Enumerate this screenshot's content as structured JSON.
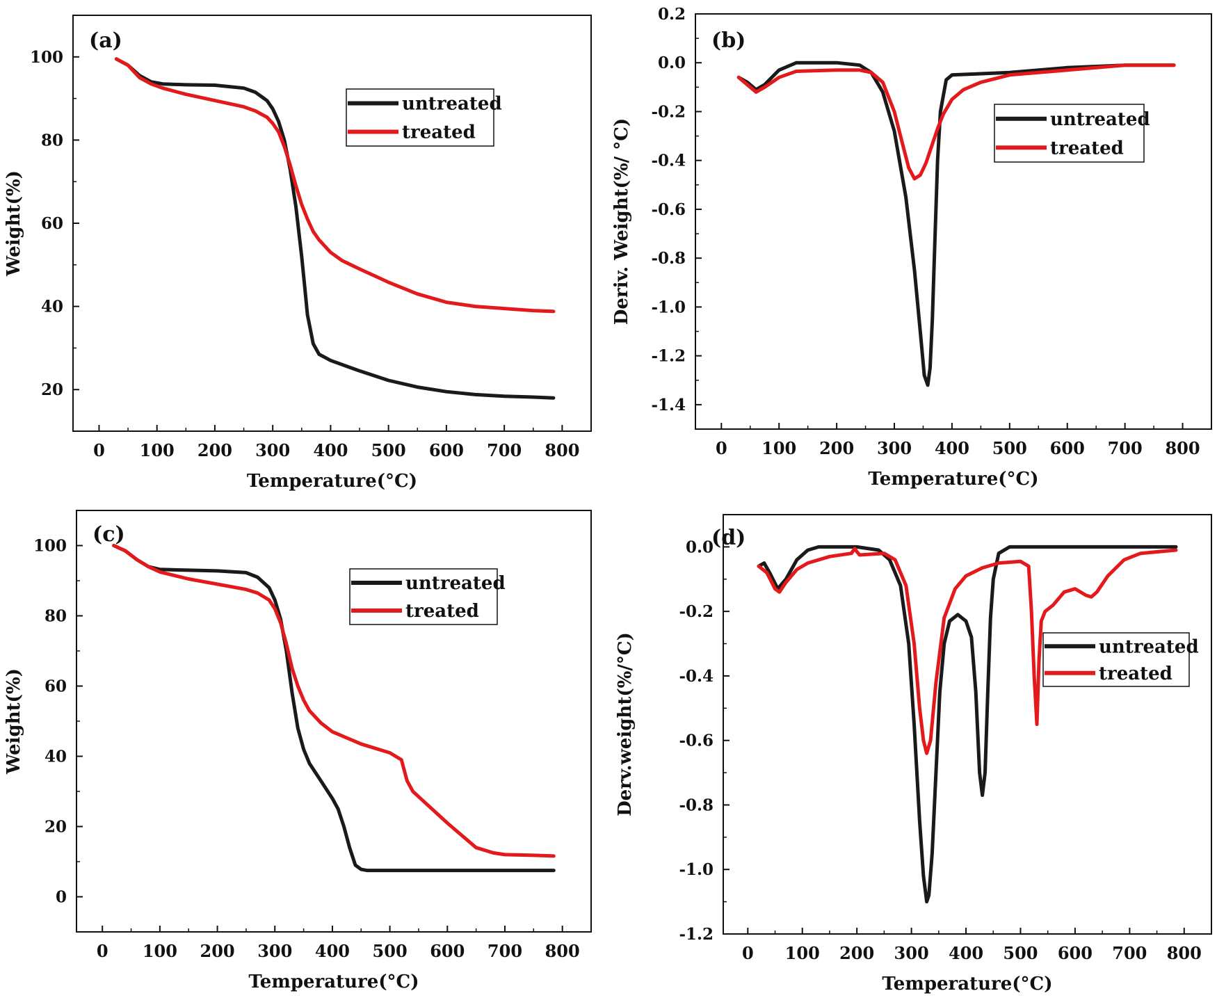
{
  "figure": {
    "description_text": ""
  },
  "chart_data": [
    {
      "panel": "(a)",
      "type": "line",
      "xlabel": "Temperature(°C)",
      "ylabel": "Weight(%)",
      "xlim": [
        -45,
        850
      ],
      "ylim": [
        10,
        110
      ],
      "xticks": [
        0,
        100,
        200,
        300,
        400,
        500,
        600,
        700,
        800
      ],
      "yticks": [
        20,
        40,
        60,
        80,
        100
      ],
      "ytick_labels": [
        "20",
        "40",
        "60",
        "80",
        "100"
      ],
      "legend_position": "upper-right",
      "series": [
        {
          "name": "untreated",
          "color": "#1a1a1a",
          "x": [
            30,
            50,
            70,
            90,
            110,
            150,
            200,
            250,
            270,
            290,
            300,
            310,
            320,
            330,
            340,
            350,
            355,
            360,
            370,
            380,
            400,
            450,
            500,
            550,
            600,
            650,
            700,
            750,
            785
          ],
          "y": [
            99.5,
            98,
            95.5,
            94,
            93.5,
            93.3,
            93.2,
            92.5,
            91.5,
            89.5,
            87.5,
            84.5,
            80,
            73,
            64,
            52,
            45,
            38,
            31,
            28.5,
            27,
            24.5,
            22.2,
            20.6,
            19.5,
            18.8,
            18.4,
            18.2,
            18
          ]
        },
        {
          "name": "treated",
          "color": "#e31a1c",
          "x": [
            30,
            50,
            70,
            90,
            110,
            150,
            200,
            250,
            270,
            290,
            300,
            310,
            320,
            330,
            340,
            350,
            360,
            370,
            380,
            400,
            420,
            450,
            500,
            550,
            600,
            650,
            700,
            750,
            785
          ],
          "y": [
            99.5,
            98,
            95,
            93.5,
            92.5,
            91,
            89.5,
            88,
            87,
            85.5,
            84,
            82,
            78.5,
            74,
            69,
            64.5,
            61,
            58,
            56,
            53,
            51,
            49,
            45.8,
            43,
            41,
            40,
            39.5,
            39,
            38.8
          ]
        }
      ]
    },
    {
      "panel": "(b)",
      "type": "line",
      "xlabel": "Temperature(°C)",
      "ylabel": "Deriv. Weight(%/ °C)",
      "xlim": [
        -45,
        850
      ],
      "ylim": [
        -1.5,
        0.2
      ],
      "xticks": [
        0,
        100,
        200,
        300,
        400,
        500,
        600,
        700,
        800
      ],
      "yticks": [
        0.2,
        0.0,
        -0.2,
        -0.4,
        -0.6,
        -0.8,
        -1.0,
        -1.2,
        -1.4
      ],
      "ytick_labels": [
        "0.2",
        "0.0",
        "-0.2",
        "-0.4",
        "-0.6",
        "-0.8",
        "-1.0",
        "-1.2",
        "-1.4"
      ],
      "legend_position": "upper-right",
      "series": [
        {
          "name": "untreated",
          "color": "#1a1a1a",
          "x": [
            30,
            45,
            60,
            75,
            100,
            130,
            200,
            240,
            260,
            280,
            300,
            320,
            335,
            345,
            352,
            358,
            362,
            366,
            370,
            375,
            380,
            390,
            400,
            450,
            500,
            600,
            700,
            785
          ],
          "y": [
            -0.06,
            -0.08,
            -0.11,
            -0.09,
            -0.03,
            0.0,
            0.0,
            -0.01,
            -0.04,
            -0.12,
            -0.28,
            -0.55,
            -0.85,
            -1.1,
            -1.28,
            -1.32,
            -1.25,
            -1.05,
            -0.75,
            -0.4,
            -0.2,
            -0.07,
            -0.05,
            -0.045,
            -0.04,
            -0.02,
            -0.01,
            -0.01
          ]
        },
        {
          "name": "treated",
          "color": "#e31a1c",
          "x": [
            30,
            45,
            60,
            75,
            100,
            130,
            200,
            240,
            260,
            280,
            300,
            315,
            325,
            335,
            345,
            355,
            365,
            375,
            385,
            400,
            420,
            450,
            500,
            600,
            700,
            785
          ],
          "y": [
            -0.06,
            -0.09,
            -0.12,
            -0.1,
            -0.06,
            -0.035,
            -0.03,
            -0.03,
            -0.04,
            -0.08,
            -0.2,
            -0.34,
            -0.43,
            -0.475,
            -0.46,
            -0.41,
            -0.34,
            -0.27,
            -0.21,
            -0.15,
            -0.11,
            -0.08,
            -0.05,
            -0.03,
            -0.01,
            -0.01
          ]
        }
      ]
    },
    {
      "panel": "(c)",
      "type": "line",
      "xlabel": "Temperature(°C)",
      "ylabel": "Weight(%)",
      "xlim": [
        -45,
        850
      ],
      "ylim": [
        -10,
        110
      ],
      "xticks": [
        0,
        100,
        200,
        300,
        400,
        500,
        600,
        700,
        800
      ],
      "yticks": [
        0,
        20,
        40,
        60,
        80,
        100
      ],
      "ytick_labels": [
        "0",
        "20",
        "40",
        "60",
        "80",
        "100"
      ],
      "legend_position": "upper-right",
      "series": [
        {
          "name": "untreated",
          "color": "#1a1a1a",
          "x": [
            20,
            40,
            60,
            80,
            100,
            150,
            200,
            250,
            270,
            290,
            300,
            310,
            320,
            330,
            340,
            350,
            360,
            380,
            400,
            410,
            420,
            430,
            440,
            450,
            460,
            480,
            550,
            650,
            785
          ],
          "y": [
            100,
            98.5,
            96,
            94,
            93.2,
            93,
            92.8,
            92.3,
            91,
            88,
            84.5,
            79,
            70,
            58,
            48,
            42,
            38,
            33,
            28,
            25,
            20,
            14,
            9,
            7.8,
            7.5,
            7.5,
            7.5,
            7.5,
            7.5
          ]
        },
        {
          "name": "treated",
          "color": "#e31a1c",
          "x": [
            20,
            40,
            60,
            80,
            100,
            150,
            200,
            250,
            270,
            290,
            300,
            310,
            320,
            330,
            340,
            350,
            360,
            380,
            400,
            450,
            500,
            520,
            530,
            540,
            560,
            600,
            650,
            680,
            700,
            750,
            785
          ],
          "y": [
            100,
            98.5,
            96,
            94,
            92.5,
            90.5,
            89,
            87.5,
            86.5,
            84.5,
            82,
            78,
            72,
            65,
            60,
            56,
            53,
            49.5,
            47,
            43.5,
            41,
            39,
            33,
            30,
            27,
            21,
            14,
            12.5,
            12,
            11.8,
            11.6
          ]
        }
      ]
    },
    {
      "panel": "(d)",
      "type": "line",
      "xlabel": "Temperature(°C)",
      "ylabel": "Derv.weight(%/°C)",
      "xlim": [
        -45,
        850
      ],
      "ylim": [
        -1.2,
        0.1
      ],
      "xticks": [
        0,
        100,
        200,
        300,
        400,
        500,
        600,
        700,
        800
      ],
      "yticks": [
        0.0,
        -0.2,
        -0.4,
        -0.6,
        -0.8,
        -1.0,
        -1.2
      ],
      "ytick_labels": [
        "0.0",
        "-0.2",
        "-0.4",
        "-0.6",
        "-0.8",
        "-1.0",
        "-1.2"
      ],
      "legend_position": "right",
      "series": [
        {
          "name": "untreated",
          "color": "#1a1a1a",
          "x": [
            20,
            30,
            40,
            55,
            70,
            90,
            110,
            130,
            200,
            240,
            260,
            280,
            295,
            305,
            315,
            322,
            328,
            332,
            338,
            345,
            352,
            360,
            370,
            385,
            400,
            410,
            418,
            425,
            430,
            435,
            440,
            445,
            450,
            460,
            480,
            500,
            785
          ],
          "y": [
            -0.06,
            -0.05,
            -0.08,
            -0.13,
            -0.1,
            -0.04,
            -0.01,
            0.0,
            0.0,
            -0.01,
            -0.04,
            -0.12,
            -0.3,
            -0.55,
            -0.85,
            -1.02,
            -1.1,
            -1.08,
            -0.95,
            -0.7,
            -0.45,
            -0.3,
            -0.23,
            -0.21,
            -0.23,
            -0.28,
            -0.45,
            -0.7,
            -0.77,
            -0.7,
            -0.45,
            -0.22,
            -0.1,
            -0.02,
            0.0,
            0.0,
            0.0
          ]
        },
        {
          "name": "treated",
          "color": "#e31a1c",
          "x": [
            20,
            35,
            50,
            58,
            70,
            90,
            110,
            150,
            190,
            196,
            200,
            205,
            250,
            270,
            290,
            305,
            315,
            322,
            328,
            335,
            345,
            360,
            380,
            400,
            430,
            460,
            500,
            515,
            520,
            525,
            530,
            534,
            538,
            545,
            560,
            580,
            600,
            620,
            630,
            640,
            660,
            690,
            720,
            785
          ],
          "y": [
            -0.06,
            -0.08,
            -0.13,
            -0.14,
            -0.11,
            -0.07,
            -0.05,
            -0.03,
            -0.02,
            -0.005,
            -0.015,
            -0.025,
            -0.02,
            -0.04,
            -0.12,
            -0.3,
            -0.5,
            -0.6,
            -0.64,
            -0.6,
            -0.42,
            -0.22,
            -0.13,
            -0.09,
            -0.065,
            -0.05,
            -0.045,
            -0.06,
            -0.2,
            -0.4,
            -0.55,
            -0.35,
            -0.23,
            -0.2,
            -0.18,
            -0.14,
            -0.13,
            -0.15,
            -0.155,
            -0.14,
            -0.09,
            -0.04,
            -0.02,
            -0.01
          ]
        }
      ]
    }
  ]
}
